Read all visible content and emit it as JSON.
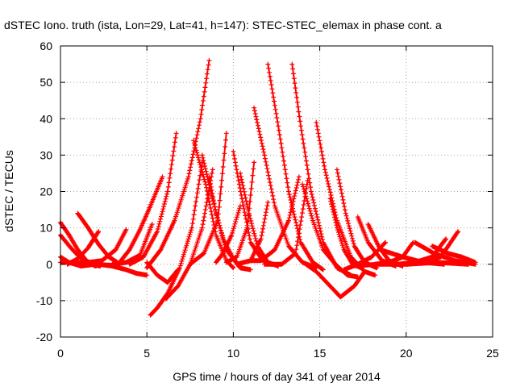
{
  "chart_data": {
    "type": "scatter",
    "title": "dSTEC Iono. truth (ista, Lon=29, Lat=41, h=147): STEC-STEC_elemax in phase cont. a",
    "xlabel": "GPS time / hours of day 341 of year 2014",
    "ylabel": "dSTEC  / TECUs",
    "xlim": [
      0,
      25
    ],
    "ylim": [
      -20,
      60
    ],
    "xticks": [
      "0",
      "5",
      "10",
      "15",
      "20",
      "25"
    ],
    "yticks": [
      "-20",
      "-10",
      "0",
      "10",
      "20",
      "30",
      "40",
      "50",
      "60"
    ],
    "grid": true,
    "marker": "plus",
    "color": "#ff0000",
    "series": [
      {
        "x": [
          0.0,
          0.5,
          1.0,
          1.5,
          2.0,
          2.4
        ],
        "y": [
          11.5,
          8.0,
          4.0,
          1.0,
          -0.5,
          0.0
        ]
      },
      {
        "x": [
          0.0,
          0.6,
          1.2,
          1.8,
          2.3
        ],
        "y": [
          8.0,
          4.5,
          1.5,
          0.0,
          -0.5
        ]
      },
      {
        "x": [
          0.0,
          0.5,
          1.2,
          2.0
        ],
        "y": [
          2.0,
          0.5,
          -0.5,
          0.0
        ]
      },
      {
        "x": [
          0.0,
          1.0,
          2.0,
          3.0
        ],
        "y": [
          0.5,
          0.5,
          0.0,
          -0.3
        ]
      },
      {
        "x": [
          1.0,
          1.6,
          2.2,
          2.8,
          3.3
        ],
        "y": [
          14.0,
          10.0,
          5.5,
          2.0,
          0.5
        ]
      },
      {
        "x": [
          0.4,
          1.0,
          1.6,
          2.2
        ],
        "y": [
          0.0,
          1.5,
          4.5,
          9.0
        ]
      },
      {
        "x": [
          1.6,
          2.4,
          3.2,
          3.8
        ],
        "y": [
          0.5,
          1.0,
          4.0,
          9.5
        ]
      },
      {
        "x": [
          3.0,
          3.8,
          4.6,
          5.3
        ],
        "y": [
          0.0,
          0.5,
          2.5,
          11.0
        ]
      },
      {
        "x": [
          2.2,
          3.0,
          3.8,
          4.4,
          5.0
        ],
        "y": [
          0.0,
          -0.5,
          -1.5,
          -2.5,
          -3.0
        ]
      },
      {
        "x": [
          3.5,
          4.0,
          4.6,
          5.2,
          5.9
        ],
        "y": [
          1.0,
          4.0,
          9.5,
          16.0,
          24.0
        ]
      },
      {
        "x": [
          4.0,
          4.8,
          5.6,
          6.2,
          6.7
        ],
        "y": [
          0.0,
          2.0,
          9.0,
          20.0,
          36.0
        ]
      },
      {
        "x": [
          5.0,
          5.8,
          6.6,
          7.4,
          8.1,
          8.6
        ],
        "y": [
          -1.0,
          4.0,
          12.0,
          24.0,
          40.0,
          56.0
        ]
      },
      {
        "x": [
          5.2,
          5.6,
          6.2,
          6.9,
          7.6,
          8.2
        ],
        "y": [
          -14.0,
          -12.0,
          -8.0,
          -1.0,
          10.0,
          28.0
        ]
      },
      {
        "x": [
          5.0,
          5.6,
          6.2,
          6.8
        ],
        "y": [
          0.5,
          -3.0,
          -5.0,
          -1.5
        ]
      },
      {
        "x": [
          6.1,
          6.8,
          7.5,
          8.2,
          8.8
        ],
        "y": [
          -9.5,
          -6.0,
          0.0,
          10.0,
          26.0
        ]
      },
      {
        "x": [
          7.7,
          8.4,
          9.0,
          9.6,
          10.0
        ],
        "y": [
          34.0,
          22.0,
          8.0,
          1.0,
          -1.0
        ]
      },
      {
        "x": [
          8.2,
          8.8,
          9.4,
          10.0,
          10.4
        ],
        "y": [
          30.0,
          18.0,
          7.0,
          1.5,
          -0.5
        ]
      },
      {
        "x": [
          8.6,
          9.0,
          9.6,
          10.4,
          11.0
        ],
        "y": [
          24.0,
          14.0,
          4.0,
          -1.0,
          -1.5
        ]
      },
      {
        "x": [
          7.5,
          8.3,
          9.1,
          9.6
        ],
        "y": [
          0.0,
          3.0,
          12.0,
          36.0
        ]
      },
      {
        "x": [
          9.0,
          9.4,
          9.9,
          10.4
        ],
        "y": [
          0.5,
          3.0,
          8.0,
          16.0
        ]
      },
      {
        "x": [
          10.0,
          10.5,
          11.0,
          11.7,
          12.2
        ],
        "y": [
          31.0,
          18.0,
          6.0,
          1.0,
          0.0
        ]
      },
      {
        "x": [
          10.4,
          10.9,
          11.4,
          12.0,
          12.6
        ],
        "y": [
          25.0,
          14.0,
          5.0,
          0.5,
          -0.5
        ]
      },
      {
        "x": [
          9.6,
          10.2,
          10.8,
          11.2
        ],
        "y": [
          0.5,
          2.0,
          10.0,
          28.0
        ]
      },
      {
        "x": [
          11.2,
          11.8,
          12.4,
          13.2,
          14.0,
          14.8
        ],
        "y": [
          43.0,
          30.0,
          16.0,
          5.0,
          0.5,
          -1.0
        ]
      },
      {
        "x": [
          12.0,
          12.6,
          13.2,
          13.9,
          14.6,
          15.2
        ],
        "y": [
          55.0,
          38.0,
          20.0,
          6.0,
          0.5,
          -1.5
        ]
      },
      {
        "x": [
          13.4,
          13.9,
          14.5,
          15.2,
          16.0,
          16.8
        ],
        "y": [
          55.0,
          38.0,
          20.0,
          6.0,
          -1.0,
          -3.0
        ]
      },
      {
        "x": [
          11.0,
          11.6,
          12.4,
          13.2,
          13.8
        ],
        "y": [
          1.0,
          1.0,
          4.0,
          12.0,
          24.0
        ]
      },
      {
        "x": [
          10.2,
          11.0,
          11.6,
          12.0
        ],
        "y": [
          0.0,
          1.0,
          7.0,
          17.0
        ]
      },
      {
        "x": [
          11.8,
          12.8,
          13.6,
          14.3
        ],
        "y": [
          0.0,
          0.0,
          3.0,
          23.0
        ]
      },
      {
        "x": [
          14.0,
          14.6,
          15.2,
          15.9,
          16.6,
          17.2
        ],
        "y": [
          22.0,
          12.0,
          4.0,
          0.0,
          -3.0,
          -3.5
        ]
      },
      {
        "x": [
          14.8,
          15.3,
          16.0,
          16.8,
          17.6,
          18.2
        ],
        "y": [
          39.0,
          26.0,
          12.0,
          2.0,
          -2.0,
          -3.0
        ]
      },
      {
        "x": [
          16.0,
          16.5,
          17.0,
          17.6,
          18.3
        ],
        "y": [
          26.0,
          14.0,
          5.0,
          0.5,
          -1.0
        ]
      },
      {
        "x": [
          15.6,
          16.0,
          16.4,
          16.9,
          17.4
        ],
        "y": [
          18.0,
          10.0,
          4.0,
          0.0,
          -1.0
        ]
      },
      {
        "x": [
          14.2,
          14.8,
          15.4,
          16.2,
          17.0,
          17.6
        ],
        "y": [
          0.0,
          -2.0,
          -5.0,
          -9.0,
          -6.0,
          -2.0
        ]
      },
      {
        "x": [
          17.2,
          17.8,
          18.6,
          19.4
        ],
        "y": [
          13.0,
          6.0,
          1.0,
          -0.5
        ]
      },
      {
        "x": [
          17.8,
          18.4,
          19.0,
          19.8
        ],
        "y": [
          11.0,
          5.0,
          1.0,
          -0.5
        ]
      },
      {
        "x": [
          16.4,
          17.2,
          18.0,
          18.8
        ],
        "y": [
          -1.5,
          0.0,
          2.0,
          6.0
        ]
      },
      {
        "x": [
          18.2,
          19.0,
          19.8,
          20.4
        ],
        "y": [
          0.0,
          0.5,
          2.0,
          6.0
        ]
      },
      {
        "x": [
          19.5,
          20.5,
          21.5,
          22.3
        ],
        "y": [
          0.0,
          0.5,
          2.0,
          7.0
        ]
      },
      {
        "x": [
          20.0,
          21.0,
          22.0,
          23.0
        ],
        "y": [
          0.0,
          0.5,
          2.0,
          9.0
        ]
      },
      {
        "x": [
          18.5,
          19.8,
          21.0,
          22.2
        ],
        "y": [
          4.0,
          2.0,
          0.5,
          0.0
        ]
      },
      {
        "x": [
          20.5,
          21.6,
          22.8,
          24.0
        ],
        "y": [
          6.0,
          3.0,
          1.0,
          0.0
        ]
      },
      {
        "x": [
          21.5,
          22.4,
          23.2,
          24.0
        ],
        "y": [
          5.0,
          3.0,
          2.0,
          0.5
        ]
      },
      {
        "x": [
          16.8,
          18.4,
          20.0,
          21.8,
          23.6
        ],
        "y": [
          -0.5,
          0.0,
          0.0,
          0.5,
          0.0
        ]
      }
    ]
  }
}
